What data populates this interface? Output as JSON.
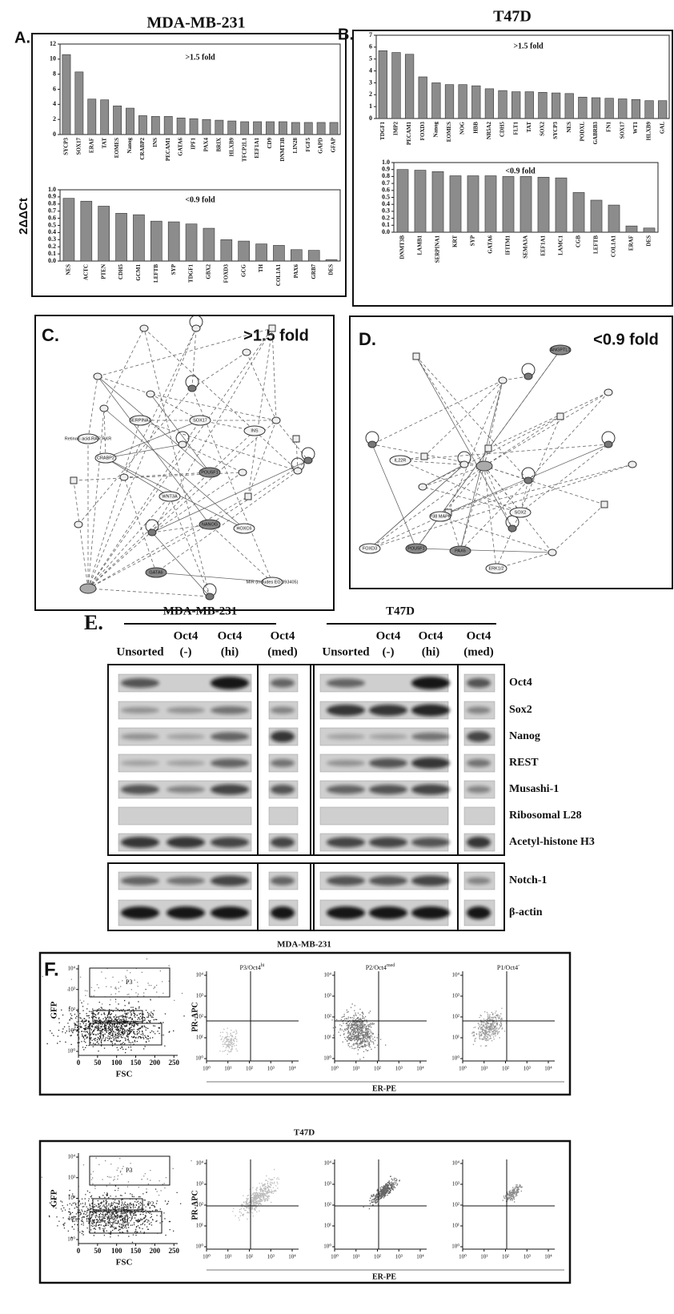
{
  "figure": {
    "y_label": "2ΔΔCt"
  },
  "panels": [
    {
      "label": "A.",
      "title": "MDA-MB-231"
    },
    {
      "label": "B.",
      "title": "T47D"
    }
  ],
  "chart_data": [
    {
      "type": "bar",
      "annotation": ">1.5 fold",
      "color": "#8c8c8c",
      "ylim": [
        0,
        12
      ],
      "yticks": [
        0,
        2,
        4,
        6,
        8,
        10,
        12
      ],
      "categories": [
        "SYCP3",
        "SOX17",
        "ERAF",
        "TAT",
        "EOMES",
        "Nanog",
        "CRABP2",
        "INS",
        "PECAM1",
        "GATA6",
        "IPF1",
        "PAX4",
        "BRIX",
        "HLXB9",
        "TFCP2L1",
        "EEF1A1",
        "CD9",
        "DNMT3B",
        "LIN28",
        "FGF5",
        "GAPD",
        "GFAP"
      ],
      "values": [
        10.6,
        8.3,
        4.7,
        4.6,
        3.8,
        3.5,
        2.5,
        2.4,
        2.4,
        2.2,
        2.1,
        2.0,
        1.9,
        1.8,
        1.7,
        1.7,
        1.7,
        1.7,
        1.6,
        1.6,
        1.6,
        1.6
      ]
    },
    {
      "type": "bar",
      "annotation": "<0.9 fold",
      "color": "#8c8c8c",
      "ylim": [
        0,
        1
      ],
      "yticks": [
        {
          "value": 0,
          "label": "0.0"
        },
        0.1,
        0.2,
        0.3,
        0.4,
        0.5,
        0.6,
        0.7,
        0.8,
        0.9,
        {
          "value": 1,
          "label": "1.0"
        }
      ],
      "categories": [
        "NES",
        "ACTC",
        "PTEN",
        "CDH5",
        "GCM1",
        "LEFTB",
        "SYP",
        "TDGF1",
        "GBX2",
        "FOXD3",
        "GCG",
        "TH",
        "COL1A1",
        "PAX6",
        "GRB7",
        "DES"
      ],
      "values": [
        0.88,
        0.84,
        0.77,
        0.67,
        0.65,
        0.56,
        0.55,
        0.52,
        0.46,
        0.3,
        0.28,
        0.24,
        0.22,
        0.16,
        0.15,
        0.02
      ]
    },
    {
      "type": "bar",
      "annotation": ">1.5 fold",
      "color": "#8c8c8c",
      "ylim": [
        0,
        7
      ],
      "yticks": [
        0,
        1,
        2,
        3,
        4,
        5,
        6,
        7
      ],
      "categories": [
        "TDGF1",
        "IMP2",
        "PECAM1",
        "FOXD3",
        "Nanog",
        "EOMES",
        "NOG",
        "HBB",
        "NR5A2",
        "CDH5",
        "FLT1",
        "TAT",
        "SOX2",
        "SYCP3",
        "NES",
        "PODXL",
        "GABRB3",
        "FN1",
        "SOX17",
        "WT1",
        "HLXB9",
        "GAL"
      ],
      "values": [
        5.7,
        5.55,
        5.4,
        3.5,
        3.0,
        2.85,
        2.85,
        2.75,
        2.5,
        2.35,
        2.25,
        2.25,
        2.2,
        2.15,
        2.1,
        1.8,
        1.75,
        1.7,
        1.65,
        1.6,
        1.5,
        1.5
      ]
    },
    {
      "type": "bar",
      "annotation": "<0.9 fold",
      "color": "#8c8c8c",
      "ylim": [
        0,
        1
      ],
      "yticks": [
        {
          "value": 0,
          "label": "0.0"
        },
        0.1,
        0.2,
        0.3,
        0.4,
        0.5,
        0.6,
        0.7,
        0.8,
        0.9,
        {
          "value": 1,
          "label": "1.0"
        }
      ],
      "categories": [
        "DNMT3B",
        "LAMB1",
        "SERPINA1",
        "KRT",
        "SYP",
        "GATA6",
        "IFITM1",
        "SEMA3A",
        "EEF1A1",
        "LAMC1",
        "CGB",
        "LEFTB",
        "COL1A1",
        "ERAF",
        "DES"
      ],
      "values": [
        0.9,
        0.89,
        0.87,
        0.81,
        0.81,
        0.81,
        0.8,
        0.8,
        0.79,
        0.78,
        0.57,
        0.46,
        0.39,
        0.09,
        0.06
      ]
    }
  ],
  "networks": [
    {
      "label": "C.",
      "annotation": ">1.5 fold",
      "nodes": [
        "POU5F1",
        "NANOG",
        "GATA6",
        "SOX17",
        "CRABP2",
        "SERPINA7",
        "WNT3A",
        "HOXC6",
        "INS",
        "Retinoic acid-RAR-RXR",
        "MIR (includes EG:393405)"
      ]
    },
    {
      "label": "D.",
      "annotation": "<0.9 fold",
      "nodes": [
        "ANGPTL1",
        "POU5F1",
        "PAX6",
        "FOXD3",
        "ERK1/2",
        "P38 MAPK",
        "IL22R",
        "SOX2"
      ]
    }
  ],
  "blot": {
    "label": "E.",
    "groups": [
      {
        "title": "MDA-MB-231"
      },
      {
        "title": "T47D"
      }
    ],
    "columns": [
      [
        "Unsorted"
      ],
      [
        "Oct4",
        "(-)"
      ],
      [
        "Oct4",
        "(hi)"
      ],
      [
        "Oct4",
        "(med)"
      ]
    ],
    "rows": [
      "Oct4",
      "Sox2",
      "Nanog",
      "REST",
      "Musashi-1",
      "Ribosomal L28",
      "Acetyl-histone H3",
      "Notch-1",
      "β-actin"
    ]
  },
  "flow": {
    "label": "F.",
    "blocks": [
      {
        "title": "MDA-MB-231",
        "quad_titles": [
          [
            "P3/Oct4",
            "hi"
          ],
          [
            "P2/Oct4",
            "med"
          ],
          [
            "P1/Oct4",
            "-"
          ]
        ]
      },
      {
        "title": "T47D"
      }
    ],
    "gate_y_label": "GFP",
    "gate_x_label": "FSC",
    "gate_xlim": [
      0,
      260
    ],
    "gate_xticks": [
      0,
      50,
      100,
      150,
      200,
      250
    ],
    "gates": [
      "P3",
      "P2",
      "P1"
    ],
    "quad_y_label": "PR-APC",
    "quad_x_label": "ER-PE",
    "log_lim": [
      1,
      10000
    ],
    "log_ticks": [
      {
        "value": 1,
        "label": "10⁰"
      },
      {
        "value": 10,
        "label": "10¹"
      },
      {
        "value": 100,
        "label": "10²"
      },
      {
        "value": 1000,
        "label": "10³"
      },
      {
        "value": 10000,
        "label": "10⁴"
      }
    ]
  }
}
